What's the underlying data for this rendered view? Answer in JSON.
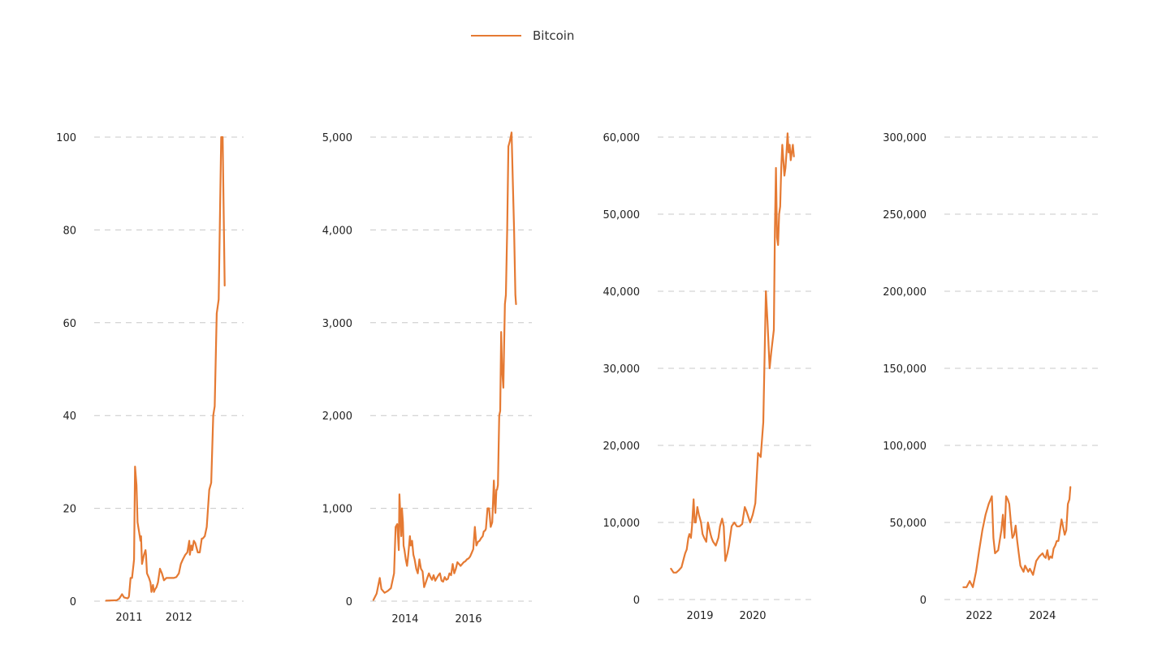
{
  "legend": {
    "label": "Bitcoin",
    "color": "#E57A33"
  },
  "chart_data": [
    {
      "type": "line",
      "title": "",
      "xlabel": "",
      "ylabel": "",
      "ylim": [
        0,
        100
      ],
      "yticks": [
        0,
        20,
        40,
        60,
        80,
        100
      ],
      "ytick_labels": [
        "0",
        "20",
        "40",
        "60",
        "80",
        "100"
      ],
      "xlim": [
        2010.3,
        2013.3
      ],
      "xticks": [
        2011,
        2012
      ],
      "xtick_labels": [
        "2011",
        "2012"
      ],
      "grid": true,
      "series": [
        {
          "color": "#E57A33",
          "x": [
            2010.54,
            2010.75,
            2010.8,
            2010.83,
            2010.86,
            2010.9,
            2010.97,
            2010.99,
            2011.0,
            2011.03,
            2011.06,
            2011.09,
            2011.1,
            2011.12,
            2011.15,
            2011.17,
            2011.2,
            2011.23,
            2011.24,
            2011.26,
            2011.28,
            2011.3,
            2011.33,
            2011.34,
            2011.36,
            2011.4,
            2011.43,
            2011.45,
            2011.46,
            2011.48,
            2011.5,
            2011.52,
            2011.55,
            2011.58,
            2011.62,
            2011.66,
            2011.7,
            2011.75,
            2011.79,
            2011.85,
            2011.9,
            2011.95,
            2012.0,
            2012.04,
            2012.08,
            2012.13,
            2012.17,
            2012.21,
            2012.22,
            2012.25,
            2012.27,
            2012.3,
            2012.33,
            2012.38,
            2012.42,
            2012.46,
            2012.48,
            2012.52,
            2012.56,
            2012.61,
            2012.65,
            2012.69,
            2012.72,
            2012.76,
            2012.8,
            2012.85,
            2012.88,
            2012.92
          ],
          "y": [
            0.1,
            0.2,
            0.5,
            1.0,
            1.5,
            0.8,
            0.6,
            0.8,
            1.1,
            5.0,
            5.0,
            8.0,
            9.0,
            29.0,
            25.0,
            17.0,
            15.0,
            13.0,
            14.0,
            8.0,
            9.0,
            10.0,
            11.0,
            10.0,
            6.0,
            5.0,
            4.0,
            2.0,
            2.5,
            3.5,
            2.0,
            2.5,
            3.0,
            4.0,
            7.0,
            6.0,
            4.5,
            5.0,
            5.0,
            5.0,
            5.0,
            5.2,
            6.0,
            8.0,
            9.0,
            10.0,
            10.5,
            13.0,
            10.0,
            12.0,
            11.0,
            13.0,
            12.5,
            10.5,
            10.5,
            13.5,
            13.5,
            14.0,
            16.0,
            24.0,
            25.5,
            40.0,
            42.0,
            62.0,
            65.0,
            100.0,
            100.0,
            68.0
          ]
        }
      ]
    },
    {
      "type": "line",
      "title": "",
      "xlabel": "",
      "ylabel": "",
      "ylim": [
        0,
        5000
      ],
      "yticks": [
        0,
        1000,
        2000,
        3000,
        4000,
        5000
      ],
      "ytick_labels": [
        "0",
        "1,000",
        "2,000",
        "3,000",
        "4,000",
        "5,000"
      ],
      "xlim": [
        2012.9,
        2018.0
      ],
      "xticks": [
        2014,
        2016
      ],
      "xtick_labels": [
        "2014",
        "2016"
      ],
      "grid": true,
      "series": [
        {
          "color": "#E57A33",
          "x": [
            2013.0,
            2013.1,
            2013.2,
            2013.25,
            2013.35,
            2013.45,
            2013.55,
            2013.65,
            2013.7,
            2013.75,
            2013.8,
            2013.82,
            2013.88,
            2013.9,
            2013.93,
            2013.95,
            2013.98,
            2014.02,
            2014.06,
            2014.1,
            2014.15,
            2014.18,
            2014.22,
            2014.26,
            2014.3,
            2014.35,
            2014.4,
            2014.45,
            2014.5,
            2014.55,
            2014.6,
            2014.65,
            2014.7,
            2014.75,
            2014.8,
            2014.85,
            2014.9,
            2014.95,
            2015.0,
            2015.05,
            2015.1,
            2015.15,
            2015.2,
            2015.25,
            2015.3,
            2015.35,
            2015.4,
            2015.45,
            2015.5,
            2015.55,
            2015.6,
            2015.65,
            2015.7,
            2015.75,
            2015.8,
            2015.85,
            2015.9,
            2015.95,
            2016.0,
            2016.05,
            2016.1,
            2016.15,
            2016.2,
            2016.25,
            2016.3,
            2016.35,
            2016.4,
            2016.45,
            2016.48,
            2016.52,
            2016.55,
            2016.6,
            2016.65,
            2016.7,
            2016.75,
            2016.8,
            2016.82,
            2016.85,
            2016.88,
            2016.9,
            2016.93,
            2016.97,
            2017.0,
            2017.03,
            2017.06,
            2017.1,
            2017.12,
            2017.15,
            2017.18,
            2017.22,
            2017.26,
            2017.3,
            2017.33,
            2017.36,
            2017.4,
            2017.44,
            2017.48,
            2017.5
          ],
          "y": [
            13,
            80,
            250,
            130,
            90,
            110,
            140,
            300,
            800,
            830,
            550,
            1150,
            700,
            1000,
            850,
            600,
            550,
            450,
            380,
            500,
            700,
            600,
            650,
            500,
            450,
            350,
            300,
            450,
            350,
            320,
            150,
            200,
            250,
            300,
            260,
            230,
            280,
            220,
            250,
            280,
            300,
            220,
            210,
            260,
            230,
            240,
            300,
            280,
            400,
            300,
            350,
            420,
            400,
            380,
            400,
            420,
            430,
            450,
            460,
            480,
            520,
            560,
            800,
            600,
            640,
            650,
            680,
            700,
            750,
            760,
            780,
            1000,
            1000,
            800,
            850,
            1300,
            1100,
            950,
            1200,
            1200,
            1250,
            2000,
            2050,
            2900,
            2500,
            2300,
            2700,
            3200,
            3300,
            4000,
            4900,
            4950,
            5000,
            5050,
            4500,
            4000,
            3300,
            3200
          ]
        }
      ]
    },
    {
      "type": "line",
      "title": "",
      "xlabel": "",
      "ylabel": "",
      "ylim": [
        0,
        60000
      ],
      "yticks": [
        0,
        10000,
        20000,
        30000,
        40000,
        50000,
        60000
      ],
      "ytick_labels": [
        "0",
        "10,000",
        "20,000",
        "30,000",
        "40,000",
        "50,000",
        "60,000"
      ],
      "xlim": [
        2018.2,
        2021.2
      ],
      "xticks": [
        2019,
        2020
      ],
      "xtick_labels": [
        "2019",
        "2020"
      ],
      "grid": true,
      "series": [
        {
          "color": "#E57A33",
          "x": [
            2018.45,
            2018.5,
            2018.55,
            2018.6,
            2018.65,
            2018.7,
            2018.72,
            2018.75,
            2018.78,
            2018.8,
            2018.83,
            2018.85,
            2018.88,
            2018.9,
            2018.92,
            2018.95,
            2018.98,
            2019.02,
            2019.05,
            2019.08,
            2019.12,
            2019.15,
            2019.2,
            2019.22,
            2019.25,
            2019.3,
            2019.35,
            2019.38,
            2019.42,
            2019.45,
            2019.48,
            2019.52,
            2019.55,
            2019.6,
            2019.65,
            2019.7,
            2019.75,
            2019.8,
            2019.85,
            2019.88,
            2019.95,
            2020.0,
            2020.05,
            2020.1,
            2020.15,
            2020.2,
            2020.25,
            2020.28,
            2020.32,
            2020.35,
            2020.4,
            2020.42,
            2020.44,
            2020.46,
            2020.48,
            2020.5,
            2020.52,
            2020.54,
            2020.56,
            2020.58,
            2020.6,
            2020.62,
            2020.64,
            2020.66,
            2020.68,
            2020.7,
            2020.72,
            2020.74,
            2020.76,
            2020.78
          ],
          "y": [
            4000,
            3500,
            3500,
            3800,
            4200,
            5500,
            6000,
            6500,
            8000,
            8500,
            8000,
            9500,
            13000,
            10000,
            10000,
            12000,
            11000,
            10000,
            8500,
            8000,
            7500,
            10000,
            8500,
            8000,
            7500,
            7000,
            8000,
            9500,
            10500,
            9500,
            5000,
            6000,
            7000,
            9500,
            10000,
            9500,
            9500,
            9800,
            12000,
            11500,
            10000,
            11000,
            12500,
            19000,
            18500,
            23000,
            40000,
            36000,
            30000,
            32000,
            35000,
            48000,
            56000,
            47000,
            46000,
            50000,
            51000,
            56000,
            59000,
            57000,
            55000,
            56000,
            58000,
            60500,
            58000,
            59000,
            57000,
            58000,
            59000,
            57500
          ]
        }
      ]
    },
    {
      "type": "line",
      "title": "",
      "xlabel": "",
      "ylabel": "",
      "ylim": [
        0,
        300000
      ],
      "yticks": [
        0,
        50000,
        100000,
        150000,
        200000,
        250000,
        300000
      ],
      "ytick_labels": [
        "0",
        "50,000",
        "100,000",
        "150,000",
        "200,000",
        "250,000",
        "300,000"
      ],
      "xlim": [
        2020.9,
        2025.9
      ],
      "xticks": [
        2022,
        2024
      ],
      "xtick_labels": [
        "2022",
        "2024"
      ],
      "grid": true,
      "series": [
        {
          "color": "#E57A33",
          "x": [
            2021.5,
            2021.6,
            2021.7,
            2021.8,
            2021.9,
            2022.0,
            2022.1,
            2022.2,
            2022.3,
            2022.4,
            2022.45,
            2022.5,
            2022.6,
            2022.7,
            2022.75,
            2022.8,
            2022.85,
            2022.9,
            2022.95,
            2023.0,
            2023.05,
            2023.1,
            2023.15,
            2023.2,
            2023.25,
            2023.3,
            2023.35,
            2023.4,
            2023.45,
            2023.5,
            2023.55,
            2023.6,
            2023.7,
            2023.8,
            2023.9,
            2024.0,
            2024.05,
            2024.1,
            2024.15,
            2024.2,
            2024.25,
            2024.3,
            2024.35,
            2024.4,
            2024.45,
            2024.5,
            2024.6,
            2024.7,
            2024.75,
            2024.8,
            2024.85,
            2024.88
          ],
          "y": [
            8000,
            8000,
            12000,
            8000,
            18000,
            32000,
            45000,
            55000,
            62000,
            67000,
            40000,
            30000,
            32000,
            45000,
            55000,
            40000,
            67000,
            65000,
            62000,
            50000,
            40000,
            42000,
            48000,
            38000,
            30000,
            22000,
            20000,
            18000,
            22000,
            20000,
            18000,
            20000,
            16000,
            25000,
            28000,
            30000,
            28000,
            27000,
            32000,
            26000,
            28000,
            27000,
            33000,
            35000,
            38000,
            38000,
            52000,
            42000,
            45000,
            62000,
            65000,
            73000
          ]
        }
      ]
    }
  ]
}
